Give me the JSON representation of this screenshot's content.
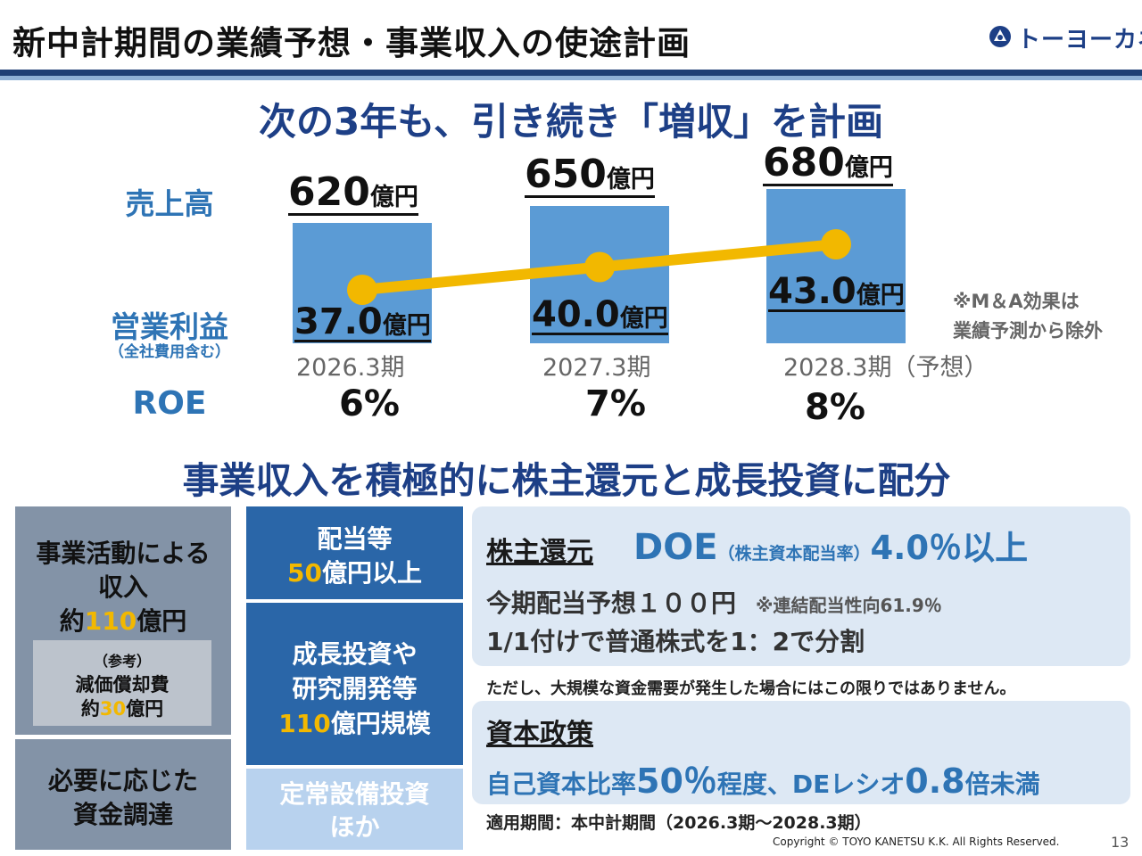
{
  "header": {
    "title": "新中計期間の業績予想・事業収入の使途計画",
    "company_logo": "トーヨーカネツ"
  },
  "colors": {
    "bar": "#5b9bd5",
    "line": "#f2b800",
    "label_blue": "#2e74b5",
    "navy": "#1d3f86"
  },
  "headline_top": "次の3年も、引き続き「増収」を計画",
  "labels": {
    "sales": "売上高",
    "op_profit": "営業利益",
    "op_profit_sub": "（全社費用含む）",
    "roe": "ROE"
  },
  "value_unit": "億円",
  "chart_data": {
    "type": "bar",
    "categories": [
      "2026.3期",
      "2027.3期",
      "2028.3期"
    ],
    "forecast_suffix": "（予想）",
    "series": [
      {
        "name": "売上高",
        "type": "bar",
        "values": [
          620,
          650,
          680
        ]
      },
      {
        "name": "営業利益",
        "type": "line",
        "values": [
          37.0,
          40.0,
          43.0
        ]
      }
    ],
    "value_labels": {
      "sales": [
        "620",
        "650",
        "680"
      ],
      "op_profit": [
        "37.0",
        "40.0",
        "43.0"
      ]
    },
    "roe": [
      "6%",
      "7%",
      "8%"
    ]
  },
  "note_lines": [
    "※M＆A効果は",
    "業績予測から除外"
  ],
  "headline_mid": "事業収入を積極的に株主還元と成長投資に配分",
  "left": {
    "income": {
      "l1": "事業活動による",
      "l2": "収入",
      "l3_pre": "約",
      "l3_num": "110",
      "l3_unit": "億円"
    },
    "ref": {
      "l1": "（参考）",
      "l2": "減価償却費",
      "l3_pre": "約",
      "l3_num": "30",
      "l3_unit": "億円"
    },
    "finance": {
      "l1": "必要に応じた",
      "l2": "資金調達"
    }
  },
  "middle": {
    "dividend": {
      "l1": "配当等",
      "l2_num": "50",
      "l2_rest": "億円以上"
    },
    "growth": {
      "l1": "成長投資や",
      "l2": "研究開発等",
      "l3_num": "110",
      "l3_rest": "億円規模"
    },
    "capex": {
      "l1": "定常設備投資",
      "l2": "ほか"
    }
  },
  "shareholder": {
    "title": "株主還元",
    "doe": "DOE",
    "doe_paren": "（株主資本配当率）",
    "doe_value": "4.0％以上",
    "line1": "今期配当予想１００円",
    "line1_note": "※連結配当性向61.9％",
    "line2": "1/1付けで普通株式を1：2で分割"
  },
  "disclaimer": "ただし、大規模な資金需要が発生した場合にはこの限りではありません。",
  "capital": {
    "title": "資本政策",
    "p1": "自己資本比率",
    "n1": "50％",
    "p2": "程度、DEレシオ",
    "n2": "0.8",
    "p3": "倍未満"
  },
  "period_text": "適用期間：本中計期間（2026.3期～2028.3期）",
  "footer": {
    "copyright": "Copyright © TOYO KANETSU K.K. All Rights Reserved.",
    "page": "13"
  }
}
